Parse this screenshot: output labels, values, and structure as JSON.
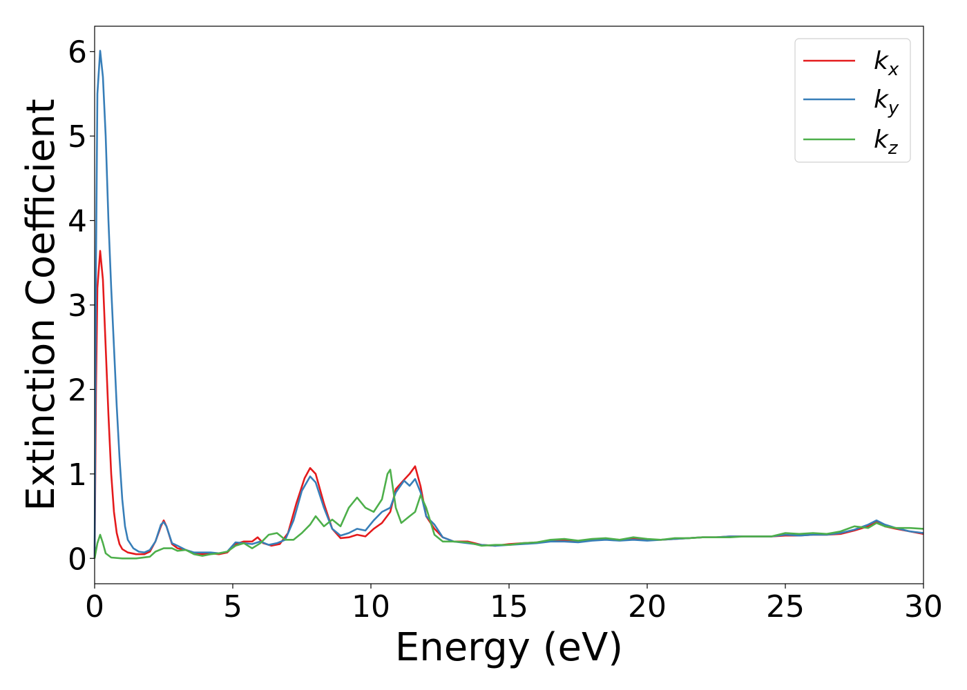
{
  "chart_data": {
    "type": "line",
    "title": "",
    "xlabel": "Energy (eV)",
    "ylabel": "Extinction Coefficient",
    "xlim": [
      0,
      30
    ],
    "ylim": [
      -0.3,
      6.3
    ],
    "xticks": [
      0,
      5,
      10,
      15,
      20,
      25,
      30
    ],
    "yticks": [
      0,
      1,
      2,
      3,
      4,
      5,
      6
    ],
    "grid": false,
    "legend_position": "top-right",
    "series": [
      {
        "name": "k_x",
        "label_base": "k",
        "label_sub": "x",
        "color": "#e41a1c",
        "points": [
          [
            0.0,
            0.0
          ],
          [
            0.05,
            2.0
          ],
          [
            0.1,
            3.2
          ],
          [
            0.2,
            3.64
          ],
          [
            0.3,
            3.3
          ],
          [
            0.4,
            2.5
          ],
          [
            0.5,
            1.7
          ],
          [
            0.6,
            1.0
          ],
          [
            0.7,
            0.55
          ],
          [
            0.8,
            0.3
          ],
          [
            0.9,
            0.17
          ],
          [
            1.0,
            0.11
          ],
          [
            1.2,
            0.07
          ],
          [
            1.5,
            0.05
          ],
          [
            1.8,
            0.05
          ],
          [
            2.0,
            0.08
          ],
          [
            2.2,
            0.2
          ],
          [
            2.4,
            0.38
          ],
          [
            2.5,
            0.45
          ],
          [
            2.6,
            0.38
          ],
          [
            2.8,
            0.17
          ],
          [
            3.0,
            0.12
          ],
          [
            3.3,
            0.1
          ],
          [
            3.6,
            0.06
          ],
          [
            3.9,
            0.05
          ],
          [
            4.2,
            0.06
          ],
          [
            4.5,
            0.05
          ],
          [
            4.8,
            0.07
          ],
          [
            5.1,
            0.17
          ],
          [
            5.4,
            0.2
          ],
          [
            5.7,
            0.2
          ],
          [
            5.9,
            0.25
          ],
          [
            6.1,
            0.18
          ],
          [
            6.4,
            0.15
          ],
          [
            6.7,
            0.17
          ],
          [
            7.0,
            0.3
          ],
          [
            7.3,
            0.65
          ],
          [
            7.6,
            0.95
          ],
          [
            7.8,
            1.07
          ],
          [
            8.0,
            1.0
          ],
          [
            8.3,
            0.65
          ],
          [
            8.6,
            0.35
          ],
          [
            8.9,
            0.24
          ],
          [
            9.2,
            0.25
          ],
          [
            9.5,
            0.28
          ],
          [
            9.8,
            0.26
          ],
          [
            10.1,
            0.35
          ],
          [
            10.4,
            0.42
          ],
          [
            10.7,
            0.55
          ],
          [
            10.9,
            0.82
          ],
          [
            11.2,
            0.93
          ],
          [
            11.4,
            1.0
          ],
          [
            11.6,
            1.09
          ],
          [
            11.8,
            0.85
          ],
          [
            12.0,
            0.5
          ],
          [
            12.3,
            0.35
          ],
          [
            12.6,
            0.25
          ],
          [
            13.0,
            0.2
          ],
          [
            13.5,
            0.2
          ],
          [
            14.0,
            0.16
          ],
          [
            14.5,
            0.15
          ],
          [
            15.0,
            0.17
          ],
          [
            15.5,
            0.18
          ],
          [
            16.0,
            0.19
          ],
          [
            16.5,
            0.21
          ],
          [
            17.0,
            0.21
          ],
          [
            17.5,
            0.2
          ],
          [
            18.0,
            0.22
          ],
          [
            18.5,
            0.23
          ],
          [
            19.0,
            0.22
          ],
          [
            19.5,
            0.23
          ],
          [
            20.0,
            0.22
          ],
          [
            20.5,
            0.22
          ],
          [
            21.0,
            0.23
          ],
          [
            21.5,
            0.24
          ],
          [
            22.0,
            0.25
          ],
          [
            22.5,
            0.25
          ],
          [
            23.0,
            0.26
          ],
          [
            23.5,
            0.26
          ],
          [
            24.0,
            0.26
          ],
          [
            24.5,
            0.26
          ],
          [
            25.0,
            0.27
          ],
          [
            25.5,
            0.27
          ],
          [
            26.0,
            0.28
          ],
          [
            26.5,
            0.28
          ],
          [
            27.0,
            0.29
          ],
          [
            27.5,
            0.33
          ],
          [
            28.0,
            0.38
          ],
          [
            28.3,
            0.44
          ],
          [
            28.6,
            0.38
          ],
          [
            29.0,
            0.35
          ],
          [
            29.5,
            0.32
          ],
          [
            30.0,
            0.29
          ]
        ]
      },
      {
        "name": "k_y",
        "label_base": "k",
        "label_sub": "y",
        "color": "#377eb8",
        "points": [
          [
            0.0,
            0.0
          ],
          [
            0.05,
            3.5
          ],
          [
            0.1,
            5.5
          ],
          [
            0.2,
            6.01
          ],
          [
            0.3,
            5.7
          ],
          [
            0.4,
            5.0
          ],
          [
            0.5,
            4.0
          ],
          [
            0.6,
            3.2
          ],
          [
            0.7,
            2.5
          ],
          [
            0.8,
            1.8
          ],
          [
            0.9,
            1.2
          ],
          [
            1.0,
            0.7
          ],
          [
            1.1,
            0.38
          ],
          [
            1.2,
            0.22
          ],
          [
            1.4,
            0.12
          ],
          [
            1.6,
            0.08
          ],
          [
            1.8,
            0.07
          ],
          [
            2.0,
            0.1
          ],
          [
            2.2,
            0.2
          ],
          [
            2.4,
            0.4
          ],
          [
            2.5,
            0.43
          ],
          [
            2.6,
            0.38
          ],
          [
            2.8,
            0.18
          ],
          [
            3.0,
            0.15
          ],
          [
            3.3,
            0.1
          ],
          [
            3.6,
            0.07
          ],
          [
            3.9,
            0.07
          ],
          [
            4.2,
            0.07
          ],
          [
            4.5,
            0.06
          ],
          [
            4.8,
            0.08
          ],
          [
            5.1,
            0.19
          ],
          [
            5.4,
            0.18
          ],
          [
            5.7,
            0.17
          ],
          [
            6.0,
            0.2
          ],
          [
            6.3,
            0.16
          ],
          [
            6.6,
            0.18
          ],
          [
            6.9,
            0.22
          ],
          [
            7.2,
            0.45
          ],
          [
            7.5,
            0.8
          ],
          [
            7.8,
            0.97
          ],
          [
            8.0,
            0.9
          ],
          [
            8.3,
            0.6
          ],
          [
            8.6,
            0.35
          ],
          [
            8.9,
            0.27
          ],
          [
            9.2,
            0.3
          ],
          [
            9.5,
            0.35
          ],
          [
            9.8,
            0.33
          ],
          [
            10.1,
            0.45
          ],
          [
            10.4,
            0.55
          ],
          [
            10.7,
            0.6
          ],
          [
            10.9,
            0.78
          ],
          [
            11.2,
            0.92
          ],
          [
            11.4,
            0.86
          ],
          [
            11.6,
            0.94
          ],
          [
            11.8,
            0.78
          ],
          [
            12.0,
            0.5
          ],
          [
            12.3,
            0.4
          ],
          [
            12.6,
            0.25
          ],
          [
            13.0,
            0.2
          ],
          [
            13.5,
            0.18
          ],
          [
            14.0,
            0.16
          ],
          [
            14.5,
            0.15
          ],
          [
            15.0,
            0.16
          ],
          [
            15.5,
            0.17
          ],
          [
            16.0,
            0.18
          ],
          [
            16.5,
            0.2
          ],
          [
            17.0,
            0.2
          ],
          [
            17.5,
            0.19
          ],
          [
            18.0,
            0.21
          ],
          [
            18.5,
            0.22
          ],
          [
            19.0,
            0.21
          ],
          [
            19.5,
            0.22
          ],
          [
            20.0,
            0.21
          ],
          [
            20.5,
            0.22
          ],
          [
            21.0,
            0.23
          ],
          [
            21.5,
            0.24
          ],
          [
            22.0,
            0.25
          ],
          [
            22.5,
            0.25
          ],
          [
            23.0,
            0.26
          ],
          [
            23.5,
            0.26
          ],
          [
            24.0,
            0.26
          ],
          [
            24.5,
            0.26
          ],
          [
            25.0,
            0.28
          ],
          [
            25.5,
            0.27
          ],
          [
            26.0,
            0.28
          ],
          [
            26.5,
            0.28
          ],
          [
            27.0,
            0.3
          ],
          [
            27.5,
            0.34
          ],
          [
            28.0,
            0.4
          ],
          [
            28.3,
            0.45
          ],
          [
            28.6,
            0.4
          ],
          [
            29.0,
            0.36
          ],
          [
            29.5,
            0.32
          ],
          [
            30.0,
            0.3
          ]
        ]
      },
      {
        "name": "k_z",
        "label_base": "k",
        "label_sub": "z",
        "color": "#4daf4a",
        "points": [
          [
            0.0,
            0.0
          ],
          [
            0.1,
            0.18
          ],
          [
            0.2,
            0.28
          ],
          [
            0.3,
            0.18
          ],
          [
            0.4,
            0.06
          ],
          [
            0.6,
            0.01
          ],
          [
            1.0,
            0.0
          ],
          [
            1.5,
            0.0
          ],
          [
            2.0,
            0.02
          ],
          [
            2.2,
            0.08
          ],
          [
            2.5,
            0.12
          ],
          [
            2.8,
            0.12
          ],
          [
            3.0,
            0.09
          ],
          [
            3.3,
            0.1
          ],
          [
            3.6,
            0.05
          ],
          [
            3.9,
            0.03
          ],
          [
            4.2,
            0.05
          ],
          [
            4.5,
            0.06
          ],
          [
            4.8,
            0.08
          ],
          [
            5.1,
            0.15
          ],
          [
            5.4,
            0.18
          ],
          [
            5.7,
            0.12
          ],
          [
            6.0,
            0.18
          ],
          [
            6.3,
            0.28
          ],
          [
            6.6,
            0.3
          ],
          [
            6.9,
            0.22
          ],
          [
            7.2,
            0.22
          ],
          [
            7.5,
            0.3
          ],
          [
            7.8,
            0.4
          ],
          [
            8.0,
            0.5
          ],
          [
            8.3,
            0.38
          ],
          [
            8.6,
            0.46
          ],
          [
            8.9,
            0.38
          ],
          [
            9.2,
            0.6
          ],
          [
            9.5,
            0.72
          ],
          [
            9.8,
            0.6
          ],
          [
            10.1,
            0.55
          ],
          [
            10.4,
            0.7
          ],
          [
            10.6,
            1.0
          ],
          [
            10.7,
            1.05
          ],
          [
            10.9,
            0.6
          ],
          [
            11.1,
            0.42
          ],
          [
            11.4,
            0.5
          ],
          [
            11.6,
            0.55
          ],
          [
            11.8,
            0.75
          ],
          [
            12.0,
            0.6
          ],
          [
            12.3,
            0.28
          ],
          [
            12.6,
            0.2
          ],
          [
            13.0,
            0.2
          ],
          [
            13.5,
            0.19
          ],
          [
            14.0,
            0.15
          ],
          [
            14.5,
            0.16
          ],
          [
            15.0,
            0.16
          ],
          [
            15.5,
            0.18
          ],
          [
            16.0,
            0.19
          ],
          [
            16.5,
            0.22
          ],
          [
            17.0,
            0.23
          ],
          [
            17.5,
            0.21
          ],
          [
            18.0,
            0.23
          ],
          [
            18.5,
            0.24
          ],
          [
            19.0,
            0.22
          ],
          [
            19.5,
            0.25
          ],
          [
            20.0,
            0.23
          ],
          [
            20.5,
            0.22
          ],
          [
            21.0,
            0.24
          ],
          [
            21.5,
            0.24
          ],
          [
            22.0,
            0.25
          ],
          [
            22.5,
            0.25
          ],
          [
            23.0,
            0.25
          ],
          [
            23.5,
            0.26
          ],
          [
            24.0,
            0.26
          ],
          [
            24.5,
            0.26
          ],
          [
            25.0,
            0.3
          ],
          [
            25.5,
            0.29
          ],
          [
            26.0,
            0.3
          ],
          [
            26.5,
            0.29
          ],
          [
            27.0,
            0.32
          ],
          [
            27.5,
            0.38
          ],
          [
            28.0,
            0.36
          ],
          [
            28.3,
            0.42
          ],
          [
            28.6,
            0.38
          ],
          [
            29.0,
            0.36
          ],
          [
            29.5,
            0.36
          ],
          [
            30.0,
            0.35
          ]
        ]
      }
    ]
  }
}
